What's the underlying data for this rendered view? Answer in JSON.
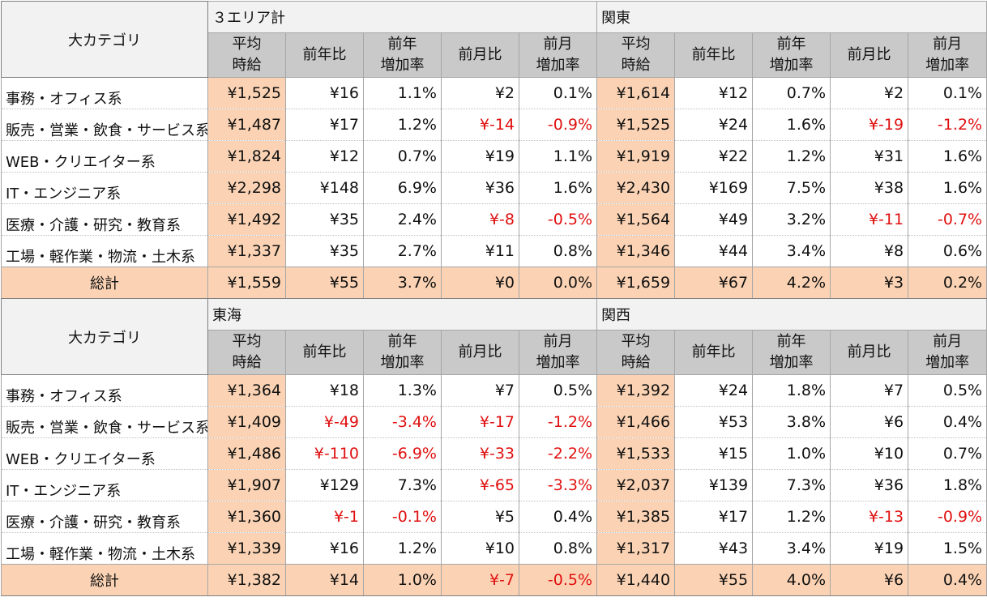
{
  "cat_header": "大カテゴリ",
  "sub_headers": [
    "平均\n時給",
    "前年比",
    "前年\n増加率",
    "前月比",
    "前月\n増加率"
  ],
  "blocks": [
    {
      "regions": [
        "３エリア計",
        "関東"
      ],
      "rows": [
        {
          "cat": "事務・オフィス系",
          "v": [
            "¥1,525",
            "¥16",
            "1.1%",
            "¥2",
            "0.1%",
            "¥1,614",
            "¥12",
            "0.7%",
            "¥2",
            "0.1%"
          ]
        },
        {
          "cat": "販売・営業・飲食・サービス系",
          "v": [
            "¥1,487",
            "¥17",
            "1.2%",
            "¥-14",
            "-0.9%",
            "¥1,525",
            "¥24",
            "1.6%",
            "¥-19",
            "-1.2%"
          ]
        },
        {
          "cat": "WEB・クリエイター系",
          "v": [
            "¥1,824",
            "¥12",
            "0.7%",
            "¥19",
            "1.1%",
            "¥1,919",
            "¥22",
            "1.2%",
            "¥31",
            "1.6%"
          ]
        },
        {
          "cat": "IT・エンジニア系",
          "v": [
            "¥2,298",
            "¥148",
            "6.9%",
            "¥36",
            "1.6%",
            "¥2,430",
            "¥169",
            "7.5%",
            "¥38",
            "1.6%"
          ]
        },
        {
          "cat": "医療・介護・研究・教育系",
          "v": [
            "¥1,492",
            "¥35",
            "2.4%",
            "¥-8",
            "-0.5%",
            "¥1,564",
            "¥49",
            "3.2%",
            "¥-11",
            "-0.7%"
          ]
        },
        {
          "cat": "工場・軽作業・物流・土木系",
          "v": [
            "¥1,337",
            "¥35",
            "2.7%",
            "¥11",
            "0.8%",
            "¥1,346",
            "¥44",
            "3.4%",
            "¥8",
            "0.6%"
          ]
        }
      ],
      "total": {
        "cat": "総計",
        "v": [
          "¥1,559",
          "¥55",
          "3.7%",
          "¥0",
          "0.0%",
          "¥1,659",
          "¥67",
          "4.2%",
          "¥3",
          "0.2%"
        ]
      }
    },
    {
      "regions": [
        "東海",
        "関西"
      ],
      "rows": [
        {
          "cat": "事務・オフィス系",
          "v": [
            "¥1,364",
            "¥18",
            "1.3%",
            "¥7",
            "0.5%",
            "¥1,392",
            "¥24",
            "1.8%",
            "¥7",
            "0.5%"
          ]
        },
        {
          "cat": "販売・営業・飲食・サービス系",
          "v": [
            "¥1,409",
            "¥-49",
            "-3.4%",
            "¥-17",
            "-1.2%",
            "¥1,466",
            "¥53",
            "3.8%",
            "¥6",
            "0.4%"
          ]
        },
        {
          "cat": "WEB・クリエイター系",
          "v": [
            "¥1,486",
            "¥-110",
            "-6.9%",
            "¥-33",
            "-2.2%",
            "¥1,533",
            "¥15",
            "1.0%",
            "¥10",
            "0.7%"
          ]
        },
        {
          "cat": "IT・エンジニア系",
          "v": [
            "¥1,907",
            "¥129",
            "7.3%",
            "¥-65",
            "-3.3%",
            "¥2,037",
            "¥139",
            "7.3%",
            "¥36",
            "1.8%"
          ]
        },
        {
          "cat": "医療・介護・研究・教育系",
          "v": [
            "¥1,360",
            "¥-1",
            "-0.1%",
            "¥5",
            "0.4%",
            "¥1,385",
            "¥17",
            "1.2%",
            "¥-13",
            "-0.9%"
          ]
        },
        {
          "cat": "工場・軽作業・物流・土木系",
          "v": [
            "¥1,339",
            "¥16",
            "1.2%",
            "¥10",
            "0.8%",
            "¥1,317",
            "¥43",
            "3.4%",
            "¥19",
            "1.5%"
          ]
        }
      ],
      "total": {
        "cat": "総計",
        "v": [
          "¥1,382",
          "¥14",
          "1.0%",
          "¥-7",
          "-0.5%",
          "¥1,440",
          "¥55",
          "4.0%",
          "¥6",
          "0.4%"
        ]
      }
    }
  ],
  "colors": {
    "highlight": "#fbd3b4",
    "negative": "#e01010",
    "subheader": "#c9c9c9",
    "header": "#f2f2f2"
  }
}
